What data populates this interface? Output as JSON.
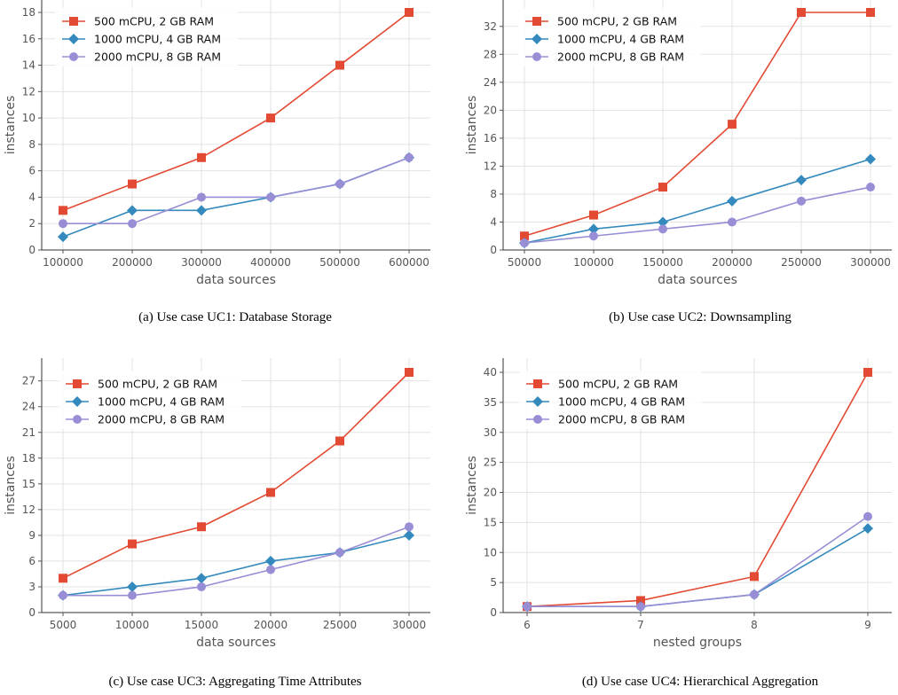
{
  "chart_data": [
    {
      "type": "line",
      "caption": "(a) Use case UC1: Database Storage",
      "xlabel": "data sources",
      "ylabel": "instances",
      "x": [
        100000,
        200000,
        300000,
        400000,
        500000,
        600000
      ],
      "xlim": [
        100000,
        600000
      ],
      "ylim": [
        0,
        18
      ],
      "yticks": [
        0,
        2,
        4,
        6,
        8,
        10,
        12,
        14,
        16,
        18
      ],
      "legend_position": "top-left",
      "grid": true,
      "series": [
        {
          "name": "500 mCPU, 2 GB RAM",
          "values": [
            3,
            5,
            7,
            10,
            14,
            18
          ],
          "color": "#e24a33",
          "marker": "square"
        },
        {
          "name": "1000 mCPU, 4 GB RAM",
          "values": [
            1,
            3,
            3,
            4,
            5,
            7
          ],
          "color": "#348abd",
          "marker": "diamond"
        },
        {
          "name": "2000 mCPU, 8 GB RAM",
          "values": [
            2,
            2,
            4,
            4,
            5,
            7
          ],
          "color": "#988ed5",
          "marker": "circle"
        }
      ]
    },
    {
      "type": "line",
      "caption": "(b) Use case UC2: Downsampling",
      "xlabel": "data sources",
      "ylabel": "instances",
      "x": [
        50000,
        100000,
        150000,
        200000,
        250000,
        300000
      ],
      "xlim": [
        50000,
        300000
      ],
      "ylim": [
        0,
        34
      ],
      "yticks": [
        0,
        4,
        8,
        12,
        16,
        20,
        24,
        28,
        32
      ],
      "legend_position": "top-left",
      "grid": true,
      "series": [
        {
          "name": "500 mCPU, 2 GB RAM",
          "values": [
            2,
            5,
            9,
            18,
            34,
            34
          ],
          "color": "#e24a33",
          "marker": "square"
        },
        {
          "name": "1000 mCPU, 4 GB RAM",
          "values": [
            1,
            3,
            4,
            7,
            10,
            13
          ],
          "color": "#348abd",
          "marker": "diamond"
        },
        {
          "name": "2000 mCPU, 8 GB RAM",
          "values": [
            1,
            2,
            3,
            4,
            7,
            9
          ],
          "color": "#988ed5",
          "marker": "circle"
        }
      ]
    },
    {
      "type": "line",
      "caption": "(c) Use case UC3: Aggregating Time Attributes",
      "xlabel": "data sources",
      "ylabel": "instances",
      "x": [
        5000,
        10000,
        15000,
        20000,
        25000,
        30000
      ],
      "xlim": [
        5000,
        30000
      ],
      "ylim": [
        0,
        28
      ],
      "yticks": [
        0,
        3,
        6,
        9,
        12,
        15,
        18,
        21,
        24,
        27
      ],
      "legend_position": "top-left",
      "grid": true,
      "series": [
        {
          "name": "500 mCPU, 2 GB RAM",
          "values": [
            4,
            8,
            10,
            14,
            20,
            28
          ],
          "color": "#e24a33",
          "marker": "square"
        },
        {
          "name": "1000 mCPU, 4 GB RAM",
          "values": [
            2,
            3,
            4,
            6,
            7,
            9
          ],
          "color": "#348abd",
          "marker": "diamond"
        },
        {
          "name": "2000 mCPU, 8 GB RAM",
          "values": [
            2,
            2,
            3,
            5,
            7,
            10
          ],
          "color": "#988ed5",
          "marker": "circle"
        }
      ]
    },
    {
      "type": "line",
      "caption": "(d) Use case UC4: Hierarchical Aggregation",
      "xlabel": "nested groups",
      "ylabel": "instances",
      "x": [
        6,
        7,
        8,
        9
      ],
      "xlim": [
        6,
        9
      ],
      "ylim": [
        0,
        40
      ],
      "yticks": [
        0,
        5,
        10,
        15,
        20,
        25,
        30,
        35,
        40
      ],
      "legend_position": "top-left",
      "grid": true,
      "series": [
        {
          "name": "500 mCPU, 2 GB RAM",
          "values": [
            1,
            2,
            6,
            40
          ],
          "color": "#e24a33",
          "marker": "square"
        },
        {
          "name": "1000 mCPU, 4 GB RAM",
          "values": [
            1,
            1,
            3,
            14
          ],
          "color": "#348abd",
          "marker": "diamond"
        },
        {
          "name": "2000 mCPU, 8 GB RAM",
          "values": [
            1,
            1,
            3,
            16
          ],
          "color": "#988ed5",
          "marker": "circle"
        }
      ]
    }
  ]
}
